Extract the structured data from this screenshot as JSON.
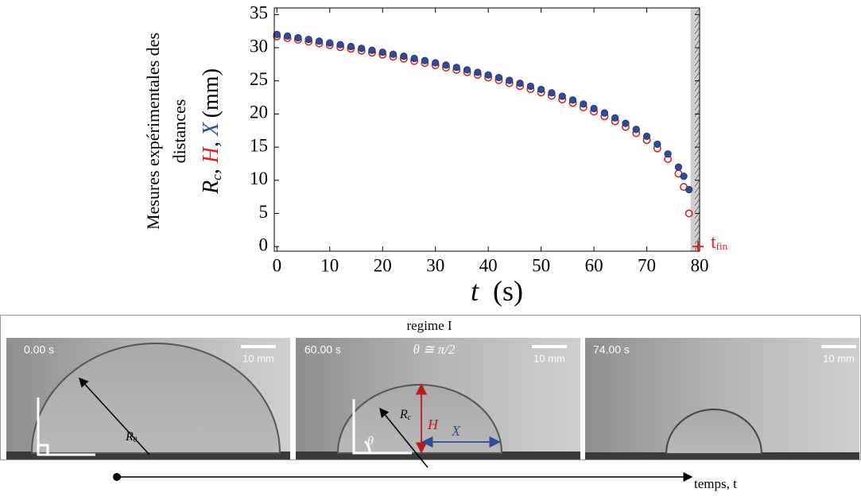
{
  "chart_data": {
    "type": "scatter",
    "ylabel_lines": [
      "Mesures expérimentales des",
      "distances"
    ],
    "ylabel": {
      "symbol": "R",
      "sub": "c",
      "sep": ", ",
      "unit": "(mm)"
    },
    "xlabel": {
      "symbol": "t",
      "unit": "(s)"
    },
    "x": [
      0,
      2,
      4,
      6,
      8,
      10,
      12,
      14,
      16,
      18,
      20,
      22,
      24,
      26,
      28,
      30,
      32,
      34,
      36,
      38,
      40,
      42,
      44,
      46,
      48,
      50,
      52,
      54,
      56,
      58,
      60,
      62,
      64,
      66,
      68,
      70,
      72,
      74,
      76,
      77,
      78
    ],
    "series": [
      {
        "name": "H",
        "color": "#d62728",
        "marker": "hollow",
        "values": [
          31.7,
          31.45,
          31.2,
          30.9,
          30.65,
          30.4,
          30.1,
          29.85,
          29.55,
          29.25,
          28.95,
          28.65,
          28.35,
          28.0,
          27.7,
          27.35,
          27.0,
          26.65,
          26.3,
          25.9,
          25.5,
          25.1,
          24.65,
          24.2,
          23.75,
          23.25,
          22.75,
          22.2,
          21.65,
          21.0,
          20.35,
          19.65,
          18.9,
          18.05,
          17.1,
          16.05,
          14.8,
          13.2,
          11.0,
          9.0,
          5.0
        ]
      },
      {
        "name": "X",
        "color": "#2f4c97",
        "marker": "filled",
        "values": [
          32.0,
          31.76,
          31.51,
          31.25,
          30.99,
          30.73,
          30.46,
          30.18,
          29.9,
          29.61,
          29.32,
          29.02,
          28.71,
          28.39,
          28.06,
          27.73,
          27.38,
          27.03,
          26.66,
          26.29,
          25.9,
          25.5,
          25.07,
          24.64,
          24.18,
          23.7,
          23.2,
          22.67,
          22.11,
          21.51,
          20.83,
          20.15,
          19.41,
          18.59,
          17.68,
          16.65,
          15.44,
          13.96,
          11.98,
          10.6,
          8.6
        ]
      }
    ],
    "xlim": [
      -0.5,
      80
    ],
    "ylim": [
      -0.7,
      36
    ],
    "xticks": [
      0,
      10,
      20,
      30,
      40,
      50,
      60,
      70,
      80
    ],
    "yticks": [
      0,
      5,
      10,
      15,
      20,
      25,
      30,
      35
    ],
    "shaded_xrange": [
      78.3,
      80
    ],
    "annotation": {
      "text": "t",
      "sub": "fin",
      "x": 79.7,
      "y": 0,
      "color": "#d62728"
    }
  },
  "figure": {
    "regime": "regime I",
    "panels": [
      {
        "time": "0.00 s",
        "scale": "10 mm",
        "radius_label": "R",
        "radius_sub": "0"
      },
      {
        "time": "60.00 s",
        "scale": "10 mm",
        "angle_note": "θ ≅ π/2",
        "radius_label": "R",
        "radius_sub": "c",
        "height_label": "H",
        "width_label": "X",
        "angle_label": "θ"
      },
      {
        "time": "74.00 s",
        "scale": "10 mm"
      }
    ],
    "time_axis": "temps, t"
  }
}
